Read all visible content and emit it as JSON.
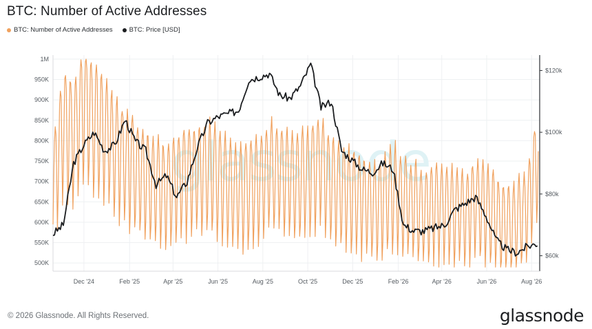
{
  "header": {
    "title": "BTC: Number of Active Addresses"
  },
  "legend": [
    {
      "label": "BTC: Number of Active Addresses",
      "color": "#f0a15e"
    },
    {
      "label": "BTC: Price [USD]",
      "color": "#1b1d20"
    }
  ],
  "footer": {
    "copyright": "© 2026 Glassnode. All Rights Reserved.",
    "logo": "glassnode",
    "watermark": "glassnode"
  },
  "chart_data": {
    "type": "line",
    "title": "BTC: Number of Active Addresses",
    "x_ticks": [
      "Dec '24",
      "Feb '25",
      "Apr '25",
      "Jun '25",
      "Aug '25",
      "Oct '25",
      "Dec '25",
      "Feb '26",
      "Apr '26",
      "Jun '26",
      "Aug '26"
    ],
    "y_left": {
      "ticks": [
        "500K",
        "550K",
        "600K",
        "650K",
        "700K",
        "750K",
        "800K",
        "850K",
        "900K",
        "950K",
        "1M"
      ],
      "range": [
        480000,
        1010000
      ]
    },
    "y_right": {
      "ticks": [
        "$60k",
        "$80k",
        "$100k",
        "$120k"
      ],
      "range": [
        55000,
        125000
      ]
    },
    "grid": true,
    "series": [
      {
        "name": "BTC: Number of Active Addresses",
        "axis": "left",
        "color": "#f0a15e",
        "note": "daily values, sampled every ~2 weeks",
        "x": [
          "2024-10-20",
          "2024-11-03",
          "2024-11-17",
          "2024-12-01",
          "2024-12-15",
          "2024-12-29",
          "2025-01-12",
          "2025-01-26",
          "2025-02-09",
          "2025-02-23",
          "2025-03-09",
          "2025-03-23",
          "2025-04-06",
          "2025-04-20",
          "2025-05-04",
          "2025-05-18",
          "2025-06-01",
          "2025-06-15",
          "2025-06-29",
          "2025-07-13",
          "2025-07-27",
          "2025-08-10",
          "2025-08-24",
          "2025-09-07",
          "2025-09-21",
          "2025-10-05",
          "2025-10-19",
          "2025-11-02",
          "2025-11-16",
          "2025-11-30",
          "2025-12-14",
          "2025-12-28",
          "2026-01-11",
          "2026-01-25",
          "2026-02-08",
          "2026-02-22",
          "2026-03-08",
          "2026-03-22",
          "2026-04-05",
          "2026-04-19",
          "2026-05-03",
          "2026-05-17",
          "2026-05-31",
          "2026-06-14",
          "2026-06-28",
          "2026-07-12",
          "2026-07-26",
          "2026-08-09"
        ],
        "y": [
          700000,
          850000,
          820000,
          900000,
          860000,
          830000,
          790000,
          760000,
          740000,
          720000,
          700000,
          690000,
          700000,
          720000,
          730000,
          740000,
          720000,
          700000,
          680000,
          690000,
          700000,
          740000,
          730000,
          720000,
          710000,
          730000,
          760000,
          700000,
          690000,
          680000,
          660000,
          650000,
          660000,
          690000,
          660000,
          650000,
          630000,
          640000,
          650000,
          640000,
          630000,
          650000,
          640000,
          620000,
          600000,
          610000,
          640000,
          760000
        ]
      },
      {
        "name": "BTC: Price [USD]",
        "axis": "right",
        "color": "#1b1d20",
        "note": "sampled every ~2 weeks",
        "x": [
          "2024-10-20",
          "2024-11-03",
          "2024-11-17",
          "2024-12-01",
          "2024-12-15",
          "2024-12-29",
          "2025-01-12",
          "2025-01-26",
          "2025-02-09",
          "2025-02-23",
          "2025-03-09",
          "2025-03-23",
          "2025-04-06",
          "2025-04-20",
          "2025-05-04",
          "2025-05-18",
          "2025-06-01",
          "2025-06-15",
          "2025-06-29",
          "2025-07-13",
          "2025-07-27",
          "2025-08-10",
          "2025-08-24",
          "2025-09-07",
          "2025-09-21",
          "2025-10-05",
          "2025-10-19",
          "2025-11-02",
          "2025-11-16",
          "2025-11-30",
          "2025-12-14",
          "2025-12-28",
          "2026-01-11",
          "2026-01-25",
          "2026-02-08",
          "2026-02-22",
          "2026-03-08",
          "2026-03-22",
          "2026-04-05",
          "2026-04-19",
          "2026-05-03",
          "2026-05-17",
          "2026-05-31",
          "2026-06-14",
          "2026-06-28",
          "2026-07-12",
          "2026-07-26",
          "2026-08-09"
        ],
        "y": [
          67000,
          70000,
          90000,
          96000,
          100000,
          94000,
          96000,
          104000,
          97000,
          94000,
          83000,
          86000,
          79000,
          84000,
          95000,
          103000,
          105000,
          106000,
          107000,
          117000,
          118000,
          119000,
          112000,
          111000,
          115000,
          122000,
          108000,
          110000,
          94000,
          91000,
          88000,
          87000,
          90000,
          88000,
          70000,
          68000,
          68000,
          69000,
          70000,
          75000,
          77000,
          79000,
          73000,
          65000,
          62000,
          61000,
          63000,
          64000
        ]
      }
    ]
  }
}
